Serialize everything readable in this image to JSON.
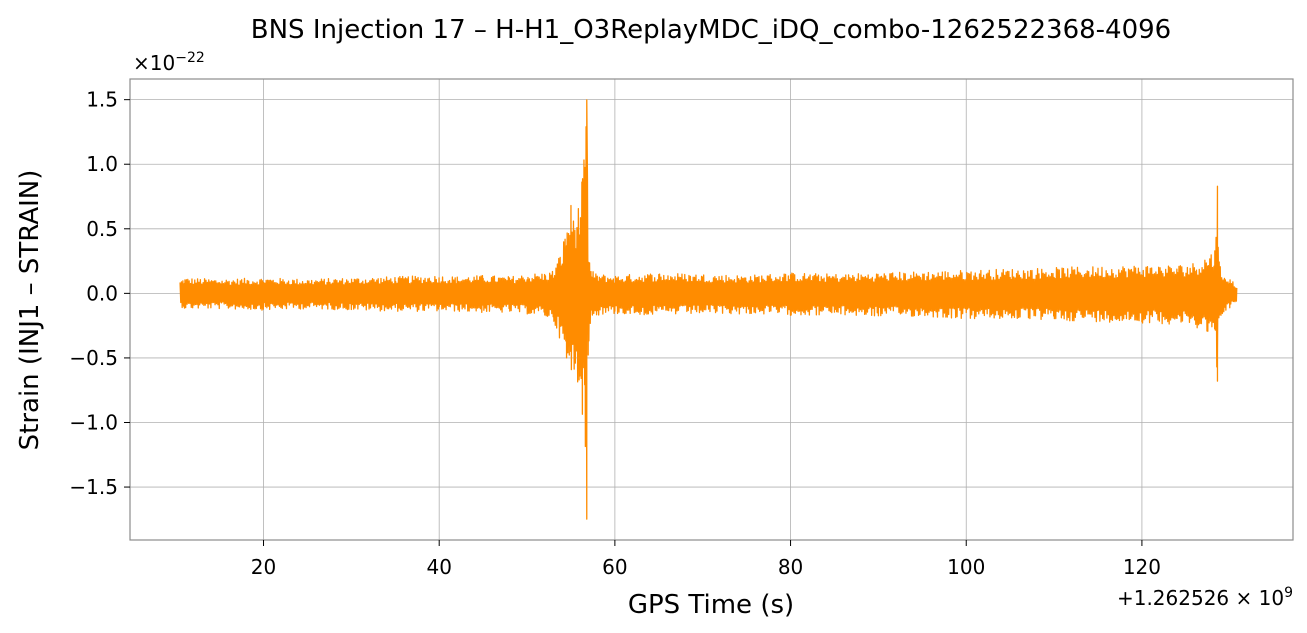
{
  "chart_data": {
    "type": "line",
    "title": "BNS Injection 17 – H-H1_O3ReplayMDC_iDQ_combo-1262522368-4096",
    "xlabel": "GPS Time (s)",
    "ylabel": "Strain (INJ1 – STRAIN)",
    "y_multiplier": {
      "base": "×10",
      "exponent": "−22"
    },
    "x_offset": {
      "prefix": "+1.262526 × 10",
      "exponent": "9"
    },
    "xlim": [
      4.8,
      137.2
    ],
    "ylim": [
      -1.91,
      1.66
    ],
    "xticks": [
      {
        "value": 20,
        "label": "20"
      },
      {
        "value": 40,
        "label": "40"
      },
      {
        "value": 60,
        "label": "60"
      },
      {
        "value": 80,
        "label": "80"
      },
      {
        "value": 100,
        "label": "100"
      },
      {
        "value": 120,
        "label": "120"
      }
    ],
    "yticks": [
      {
        "value": 1.5,
        "label": "1.5"
      },
      {
        "value": 1.0,
        "label": "1.0"
      },
      {
        "value": 0.5,
        "label": "0.5"
      },
      {
        "value": 0.0,
        "label": "0.0"
      },
      {
        "value": -0.5,
        "label": "−0.5"
      },
      {
        "value": -1.0,
        "label": "−1.0"
      },
      {
        "value": -1.5,
        "label": "−1.5"
      }
    ],
    "grid": true,
    "series_color": "#ff8c00",
    "series": [
      {
        "x": [
          10.5,
          11,
          15,
          20,
          25,
          30,
          35,
          40,
          42,
          45,
          48,
          50,
          52,
          53,
          54,
          54.5,
          55,
          55.5,
          56,
          56.3,
          56.6,
          56.8,
          57.0,
          57.3,
          58,
          60,
          65,
          70,
          75,
          80,
          85,
          90,
          95,
          100,
          105,
          110,
          115,
          120,
          124,
          126,
          127.5,
          128.3,
          128.6,
          128.8,
          129.0,
          129.5,
          130,
          130.8
        ],
        "upper": [
          0.1,
          0.12,
          0.11,
          0.12,
          0.11,
          0.12,
          0.13,
          0.14,
          0.13,
          0.14,
          0.13,
          0.15,
          0.16,
          0.18,
          0.35,
          0.55,
          0.7,
          0.62,
          0.72,
          0.9,
          1.15,
          1.5,
          0.35,
          0.18,
          0.15,
          0.14,
          0.16,
          0.15,
          0.14,
          0.16,
          0.15,
          0.16,
          0.17,
          0.18,
          0.19,
          0.2,
          0.21,
          0.22,
          0.22,
          0.24,
          0.3,
          0.35,
          0.83,
          0.25,
          0.18,
          0.15,
          0.12,
          0.06
        ],
        "lower": [
          -0.1,
          -0.12,
          -0.12,
          -0.13,
          -0.12,
          -0.13,
          -0.14,
          -0.14,
          -0.14,
          -0.15,
          -0.15,
          -0.16,
          -0.18,
          -0.22,
          -0.4,
          -0.6,
          -0.68,
          -0.62,
          -0.75,
          -0.95,
          -1.2,
          -1.75,
          -0.4,
          -0.2,
          -0.17,
          -0.16,
          -0.17,
          -0.16,
          -0.16,
          -0.17,
          -0.17,
          -0.18,
          -0.18,
          -0.2,
          -0.2,
          -0.21,
          -0.22,
          -0.23,
          -0.24,
          -0.26,
          -0.3,
          -0.38,
          -0.68,
          -0.26,
          -0.18,
          -0.15,
          -0.12,
          -0.06
        ]
      }
    ]
  }
}
